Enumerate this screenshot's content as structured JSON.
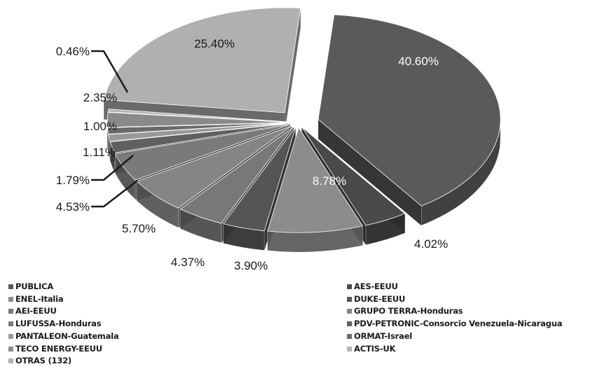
{
  "chart_data": {
    "type": "pie",
    "title": "",
    "style": "3d-exploded",
    "categories": [
      "PUBLICA",
      "AES-EEUU",
      "ENEL-Italia",
      "DUKE-EEUU",
      "AEI-EEUU",
      "GRUPO TERRA-Honduras",
      "LUFUSSA-Honduras",
      "PDV-PETRONIC-Consorcio  Venezuela-Nicaragua",
      "PANTALEON-Guatemala",
      "ORMAT-Israel",
      "TECO ENERGY-EEUU",
      "ACTIS-UK",
      "OTRAS (132)"
    ],
    "slices": [
      {
        "name": "PUBLICA",
        "value": 40.6,
        "label": "40.60%",
        "color": "#5a5a5a"
      },
      {
        "name": "AES-EEUU",
        "value": 4.02,
        "label": "4.02%",
        "color": "#4a4a4a"
      },
      {
        "name": "ENEL-Italia",
        "value": 8.78,
        "label": "8.78%",
        "color": "#8c8c8c"
      },
      {
        "name": "DUKE-EEUU",
        "value": 3.9,
        "label": "3.90%",
        "color": "#555555"
      },
      {
        "name": "AEI-EEUU",
        "value": 4.37,
        "label": "4.37%",
        "color": "#787878"
      },
      {
        "name": "GRUPO TERRA-Honduras",
        "value": 5.7,
        "label": "5.70%",
        "color": "#858585"
      },
      {
        "name": "LUFUSSA-Honduras",
        "value": 4.53,
        "label": "4.53%",
        "color": "#7a7a7a"
      },
      {
        "name": "PDV-PETRONIC-Consorcio  Venezuela-Nicaragua",
        "value": 1.79,
        "label": "1.79%",
        "color": "#606060"
      },
      {
        "name": "PANTALEON-Guatemala",
        "value": 1.11,
        "label": "1.11%",
        "color": "#999999"
      },
      {
        "name": "ORMAT-Israel",
        "value": 1.0,
        "label": "1.00%",
        "color": "#6a6a6a"
      },
      {
        "name": "TECO ENERGY-EEUU",
        "value": 2.35,
        "label": "2.35%",
        "color": "#8a8a8a"
      },
      {
        "name": "ACTIS-UK",
        "value": 0.46,
        "label": "0.46%",
        "color": "#b4b4b4"
      },
      {
        "name": "OTRAS (132)",
        "value": 25.4,
        "label": "25.40%",
        "color": "#b0b0b0"
      }
    ],
    "legend_position": "bottom",
    "legend": {
      "left": [
        {
          "label": "PUBLICA",
          "color": "#5a5a5a"
        },
        {
          "label": "ENEL-Italia",
          "color": "#8c8c8c"
        },
        {
          "label": "AEI-EEUU",
          "color": "#787878"
        },
        {
          "label": "LUFUSSA-Honduras",
          "color": "#7a7a7a"
        },
        {
          "label": "PANTALEON-Guatemala",
          "color": "#999999"
        },
        {
          "label": "TECO ENERGY-EEUU",
          "color": "#8a8a8a"
        },
        {
          "label": "OTRAS (132)",
          "color": "#b0b0b0"
        }
      ],
      "right": [
        {
          "label": "AES-EEUU",
          "color": "#4a4a4a"
        },
        {
          "label": "DUKE-EEUU",
          "color": "#555555"
        },
        {
          "label": "GRUPO TERRA-Honduras",
          "color": "#858585"
        },
        {
          "label": "PDV-PETRONIC-Consorcio  Venezuela-Nicaragua",
          "color": "#606060"
        },
        {
          "label": "ORMAT-Israel",
          "color": "#6a6a6a"
        },
        {
          "label": "ACTIS-UK",
          "color": "#b4b4b4"
        }
      ]
    }
  }
}
